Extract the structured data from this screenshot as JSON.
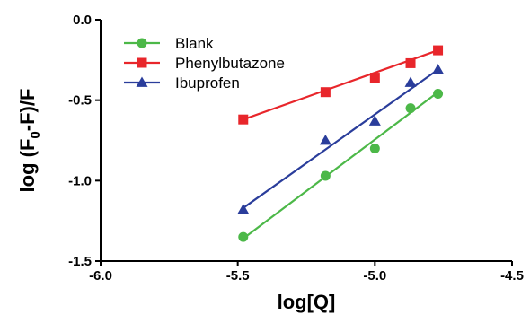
{
  "chart_data": {
    "type": "scatter",
    "xlabel": "log[Q]",
    "ylabel_parts": [
      "log (F",
      "0",
      "-F)/F"
    ],
    "xlim": [
      -6.0,
      -4.5
    ],
    "ylim": [
      -1.5,
      0.0
    ],
    "x_ticks": [
      -6.0,
      -5.5,
      -5.0,
      -4.5
    ],
    "x_tick_labels": [
      "-6.0",
      "-5.5",
      "-5.0",
      "-4.5"
    ],
    "y_ticks": [
      0.0,
      -0.5,
      -1.0,
      -1.5
    ],
    "y_tick_labels": [
      "0.0",
      "-0.5",
      "-1.0",
      "-1.5"
    ],
    "grid": false,
    "legend_position": "top-left",
    "series": [
      {
        "name": "Blank",
        "color": "#4cb848",
        "marker": "circle",
        "x": [
          -5.48,
          -5.18,
          -5.0,
          -4.87,
          -4.77
        ],
        "y": [
          -1.35,
          -0.97,
          -0.8,
          -0.55,
          -0.46
        ],
        "fit": [
          [
            -5.48,
            -1.36
          ],
          [
            -4.77,
            -0.45
          ]
        ]
      },
      {
        "name": "Phenylbutazone",
        "color": "#e8262b",
        "marker": "square",
        "x": [
          -5.48,
          -5.18,
          -5.0,
          -4.87,
          -4.77
        ],
        "y": [
          -0.62,
          -0.45,
          -0.36,
          -0.27,
          -0.19
        ],
        "fit": [
          [
            -5.48,
            -0.62
          ],
          [
            -4.77,
            -0.19
          ]
        ]
      },
      {
        "name": "Ibuprofen",
        "color": "#2a3d9b",
        "marker": "triangle",
        "x": [
          -5.48,
          -5.18,
          -5.0,
          -4.87,
          -4.77
        ],
        "y": [
          -1.18,
          -0.75,
          -0.63,
          -0.39,
          -0.31
        ],
        "fit": [
          [
            -5.48,
            -1.17
          ],
          [
            -4.77,
            -0.31
          ]
        ]
      }
    ]
  }
}
